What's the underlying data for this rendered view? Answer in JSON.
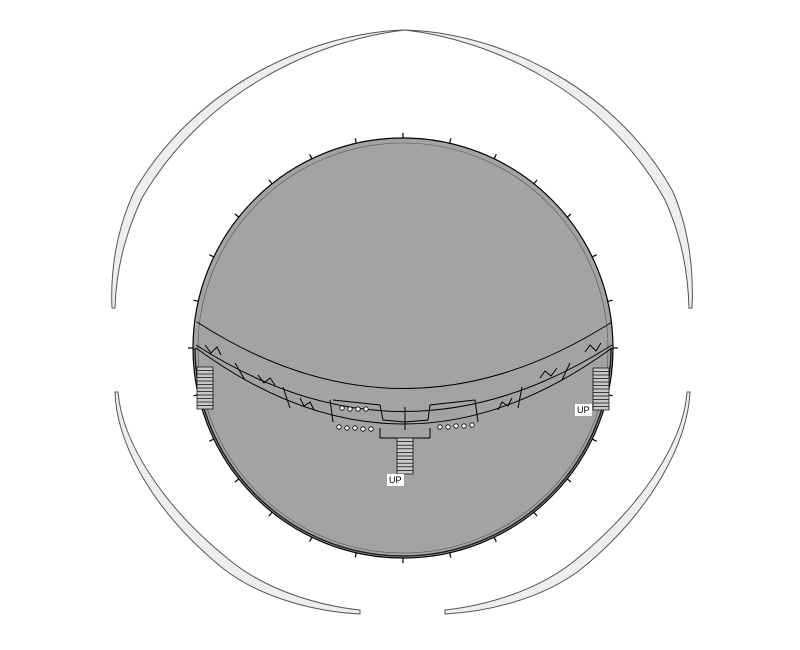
{
  "floor_plan": {
    "labels": [
      {
        "id": "up-right",
        "text": "UP"
      },
      {
        "id": "up-center",
        "text": "UP"
      }
    ],
    "colors": {
      "background": "#ffffff",
      "floor_fill": "#a3a3a3",
      "line": "#000000",
      "arc_outer": "#555555",
      "arc_fill": "#eeeeee"
    }
  }
}
